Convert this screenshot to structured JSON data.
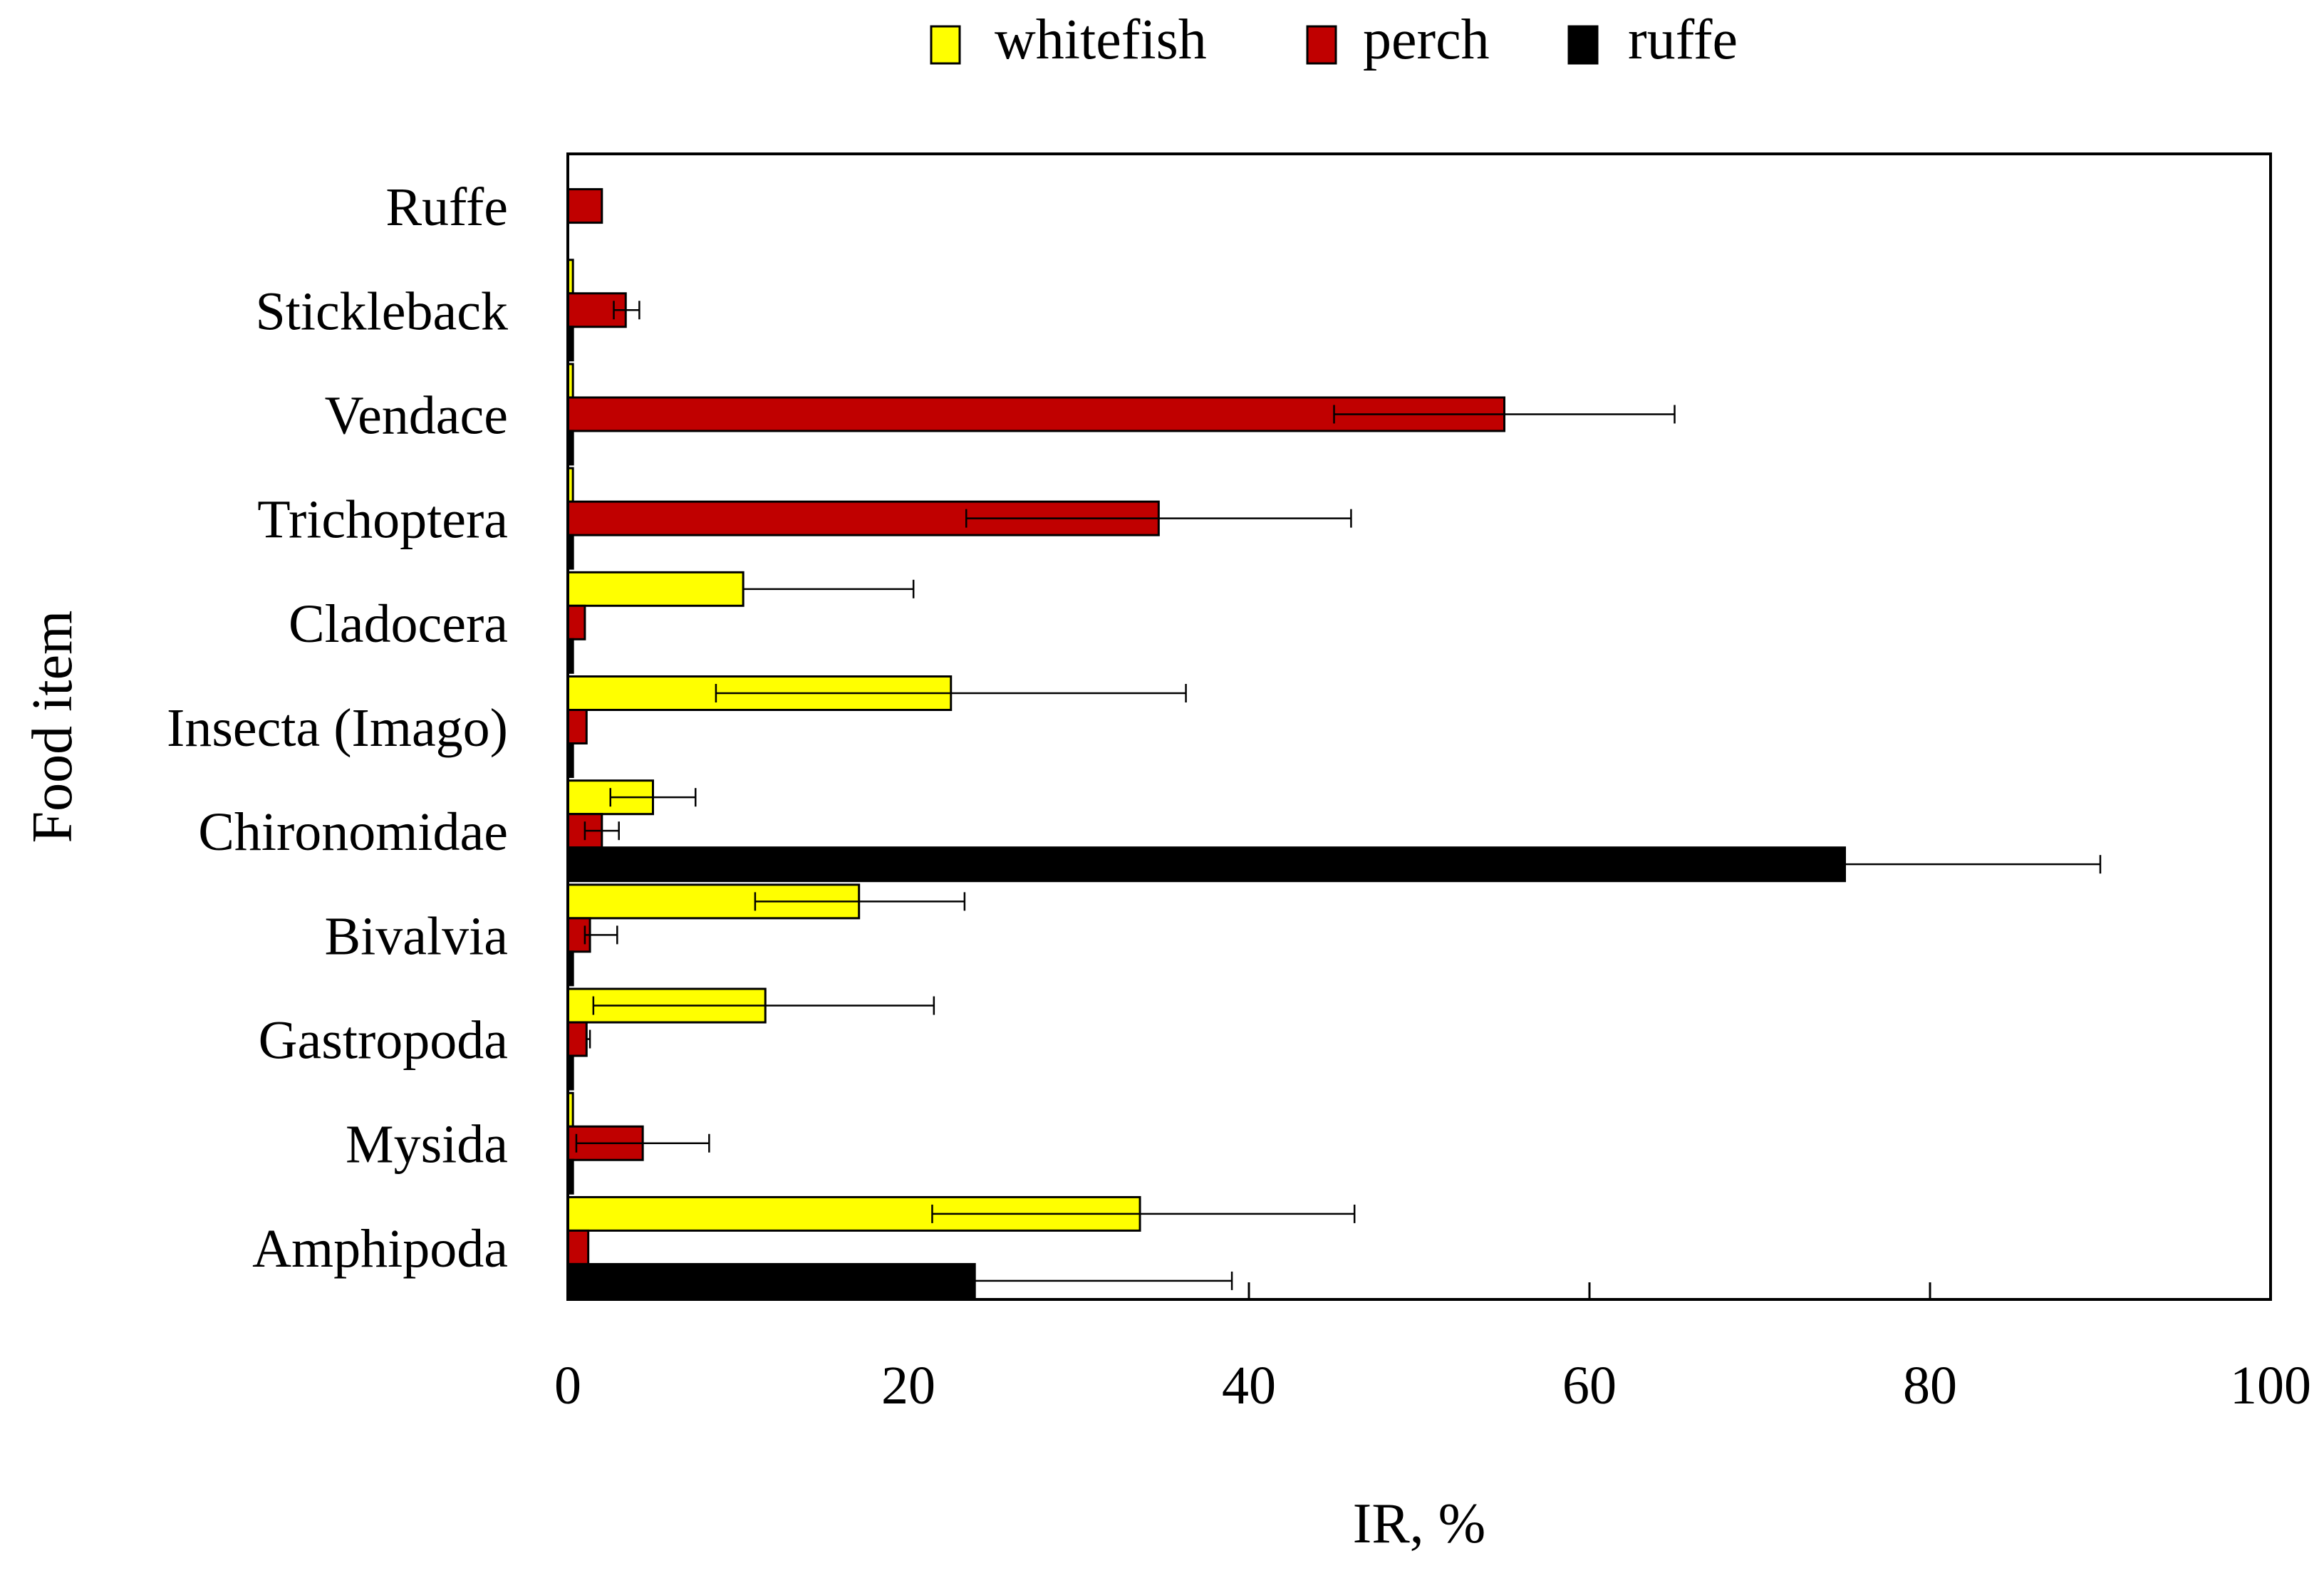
{
  "chart_data": {
    "type": "bar",
    "orientation": "horizontal",
    "xlabel": "IR, %",
    "ylabel": "Food item",
    "xlim": [
      0,
      100
    ],
    "xticks": [
      "0",
      "20",
      "40",
      "60",
      "80",
      "100"
    ],
    "legend_position": "top",
    "grid": false,
    "categories": [
      "Ruffe",
      "Stickleback",
      "Vendace",
      "Trichoptera",
      "Cladocera",
      "Insecta (Imago)",
      "Chironomidae",
      "Bivalvia",
      "Gastropoda",
      "Mysida",
      "Amphipoda"
    ],
    "series": [
      {
        "name": "whitefish",
        "color": "#ffff00",
        "values": [
          0,
          0.3,
          0.3,
          0.3,
          10.3,
          22.5,
          5.0,
          17.1,
          11.6,
          0.3,
          33.6
        ],
        "error_low": [
          0,
          0,
          0,
          0,
          10.3,
          8.7,
          2.5,
          11.0,
          1.5,
          0,
          21.4
        ],
        "error_high": [
          0,
          0,
          0,
          0,
          20.3,
          36.3,
          7.5,
          23.3,
          21.5,
          0,
          46.2
        ]
      },
      {
        "name": "perch",
        "color": "#c00000",
        "values": [
          2.0,
          3.4,
          55.0,
          34.7,
          1.0,
          1.1,
          2.0,
          1.3,
          1.1,
          4.4,
          1.2
        ],
        "error_low": [
          2.0,
          2.7,
          45.0,
          23.4,
          1.0,
          1.1,
          1.0,
          1.0,
          1.1,
          0.5,
          1.2
        ],
        "error_high": [
          2.0,
          4.2,
          65.0,
          46.0,
          1.0,
          1.1,
          3.0,
          2.9,
          1.3,
          8.3,
          1.2
        ]
      },
      {
        "name": "ruffe",
        "color": "#000000",
        "values": [
          0,
          0.3,
          0.3,
          0.3,
          0.3,
          0.3,
          75.0,
          0.3,
          0.3,
          0.3,
          23.9
        ],
        "error_low": [
          0,
          0,
          0,
          0,
          0,
          0,
          75.0,
          0,
          0,
          0,
          23.9
        ],
        "error_high": [
          0,
          0,
          0,
          0,
          0,
          0,
          90.0,
          0,
          0,
          0,
          39.0
        ]
      }
    ]
  }
}
